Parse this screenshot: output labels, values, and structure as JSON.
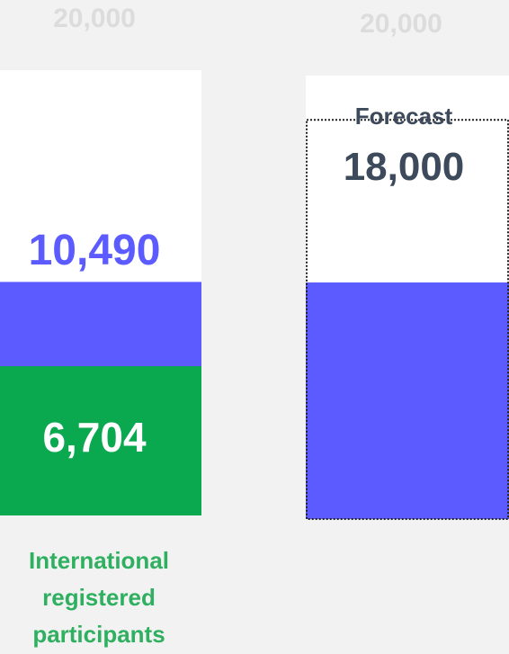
{
  "chart_data": {
    "type": "bar",
    "categories": [
      "International registered participants",
      null
    ],
    "ylim": [
      0,
      20000
    ],
    "yticks": [
      {
        "value": 20000,
        "label": "20,000"
      }
    ],
    "series": [
      {
        "color": "#5b5bff",
        "values": [
          10490,
          10670
        ],
        "value_labels": [
          "10,490",
          null
        ]
      },
      {
        "color": "#0aa84f",
        "values": [
          6704,
          null
        ],
        "value_labels": [
          "6,704",
          null
        ]
      }
    ],
    "forecast": {
      "label": "Forecast",
      "value": 18000,
      "value_label": "18,000"
    }
  }
}
